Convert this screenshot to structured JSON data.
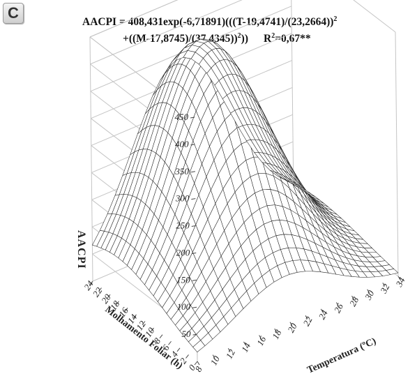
{
  "panel": {
    "label": "C"
  },
  "equation": {
    "line1": "AACPI = 408,431exp(-6,71891)(((T-19,4741)/(23,2664))",
    "line1_sup": "2",
    "line2": "+((M-17,8745)/(37,4345))",
    "line2_sup": "2",
    "line2_close": "))",
    "r2_prefix": "R",
    "r2_sup": "2",
    "r2_value": "=0,67**"
  },
  "chart_data": {
    "type": "surface",
    "title": "",
    "zlabel": "AACPI",
    "xlabel": "Temperatura (ºC)",
    "ylabel": "Molhamento Foliar (h)",
    "zticks": [
      50,
      100,
      150,
      200,
      250,
      300,
      350,
      400,
      450
    ],
    "zlim": [
      0,
      450
    ],
    "xticks": [
      8,
      10,
      12,
      14,
      16,
      18,
      20,
      22,
      24,
      26,
      28,
      30,
      32,
      34
    ],
    "xlim": [
      8,
      34
    ],
    "yticks": [
      0,
      2,
      4,
      6,
      8,
      10,
      12,
      14,
      16,
      18,
      20,
      22,
      24
    ],
    "ylim": [
      0,
      24
    ],
    "model": {
      "formula": "Z = A*exp(k*(((T-T0)/sT)^2 + ((M-M0)/sM)^2))",
      "A": 408.431,
      "k": -6.71891,
      "T0": 19.4741,
      "sT": 23.2664,
      "M0": 17.8745,
      "sM": 37.4345
    },
    "grid": true,
    "colors": {
      "mesh": "#222222",
      "box": "#c4c4c4",
      "surface": "#ffffff"
    }
  }
}
